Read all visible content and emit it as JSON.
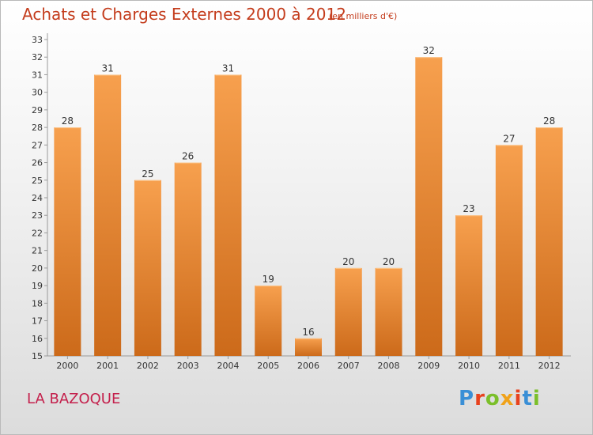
{
  "header": {
    "title": "Achats et Charges Externes 2000 à 2012",
    "unit": "(en milliers d'€)"
  },
  "footer": {
    "location": "LA BAZOQUE",
    "logo_letters": [
      "P",
      "r",
      "o",
      "x",
      "i",
      "t",
      "i"
    ]
  },
  "colors": {
    "bar_top": "#f7a04e",
    "bar_bottom": "#cc6a1a",
    "title": "#c43c1c",
    "location": "#c4204c"
  },
  "chart_data": {
    "type": "bar",
    "categories": [
      "2000",
      "2001",
      "2002",
      "2003",
      "2004",
      "2005",
      "2006",
      "2007",
      "2008",
      "2009",
      "2010",
      "2011",
      "2012"
    ],
    "values": [
      28,
      31,
      25,
      26,
      31,
      19,
      16,
      20,
      20,
      32,
      23,
      27,
      28
    ],
    "title": "Achats et Charges Externes 2000 à 2012",
    "xlabel": "",
    "ylabel": "",
    "ylim": [
      15,
      33
    ],
    "yticks": [
      15,
      16,
      17,
      18,
      19,
      20,
      21,
      22,
      23,
      24,
      25,
      26,
      27,
      28,
      29,
      30,
      31,
      32,
      33
    ],
    "grid": false,
    "data_labels": true
  }
}
